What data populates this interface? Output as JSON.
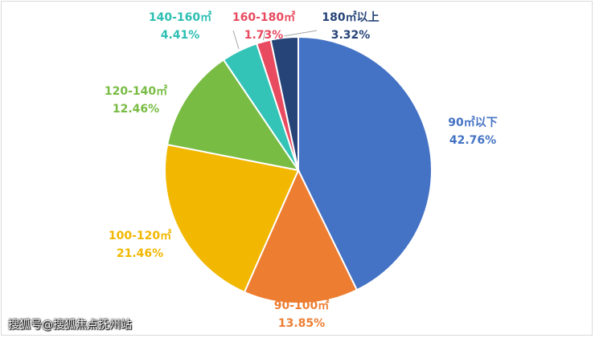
{
  "chart_data": {
    "type": "pie",
    "title": "",
    "start_angle_deg": 0,
    "direction": "clockwise",
    "slices": [
      {
        "label": "90㎡以下",
        "value": 42.76,
        "value_text": "42.76%",
        "color": "#4472C4",
        "label_color": "#4472C4"
      },
      {
        "label": "90-100㎡",
        "value": 13.85,
        "value_text": "13.85%",
        "color": "#ED7D31",
        "label_color": "#ED7D31"
      },
      {
        "label": "100-120㎡",
        "value": 21.46,
        "value_text": "21.46%",
        "color": "#F2B700",
        "label_color": "#F2B700"
      },
      {
        "label": "120-140㎡",
        "value": 12.46,
        "value_text": "12.46%",
        "color": "#78BC43",
        "label_color": "#78BC43"
      },
      {
        "label": "140-160㎡",
        "value": 4.41,
        "value_text": "4.41%",
        "color": "#34C3B7",
        "label_color": "#2DBFB3"
      },
      {
        "label": "160-180㎡",
        "value": 1.73,
        "value_text": "1.73%",
        "color": "#E84A5F",
        "label_color": "#E84A5F"
      },
      {
        "label": "180㎡以上",
        "value": 3.32,
        "value_text": "3.32%",
        "color": "#264478",
        "label_color": "#264478"
      }
    ]
  },
  "watermark": "搜狐号@搜狐焦点抚州站"
}
